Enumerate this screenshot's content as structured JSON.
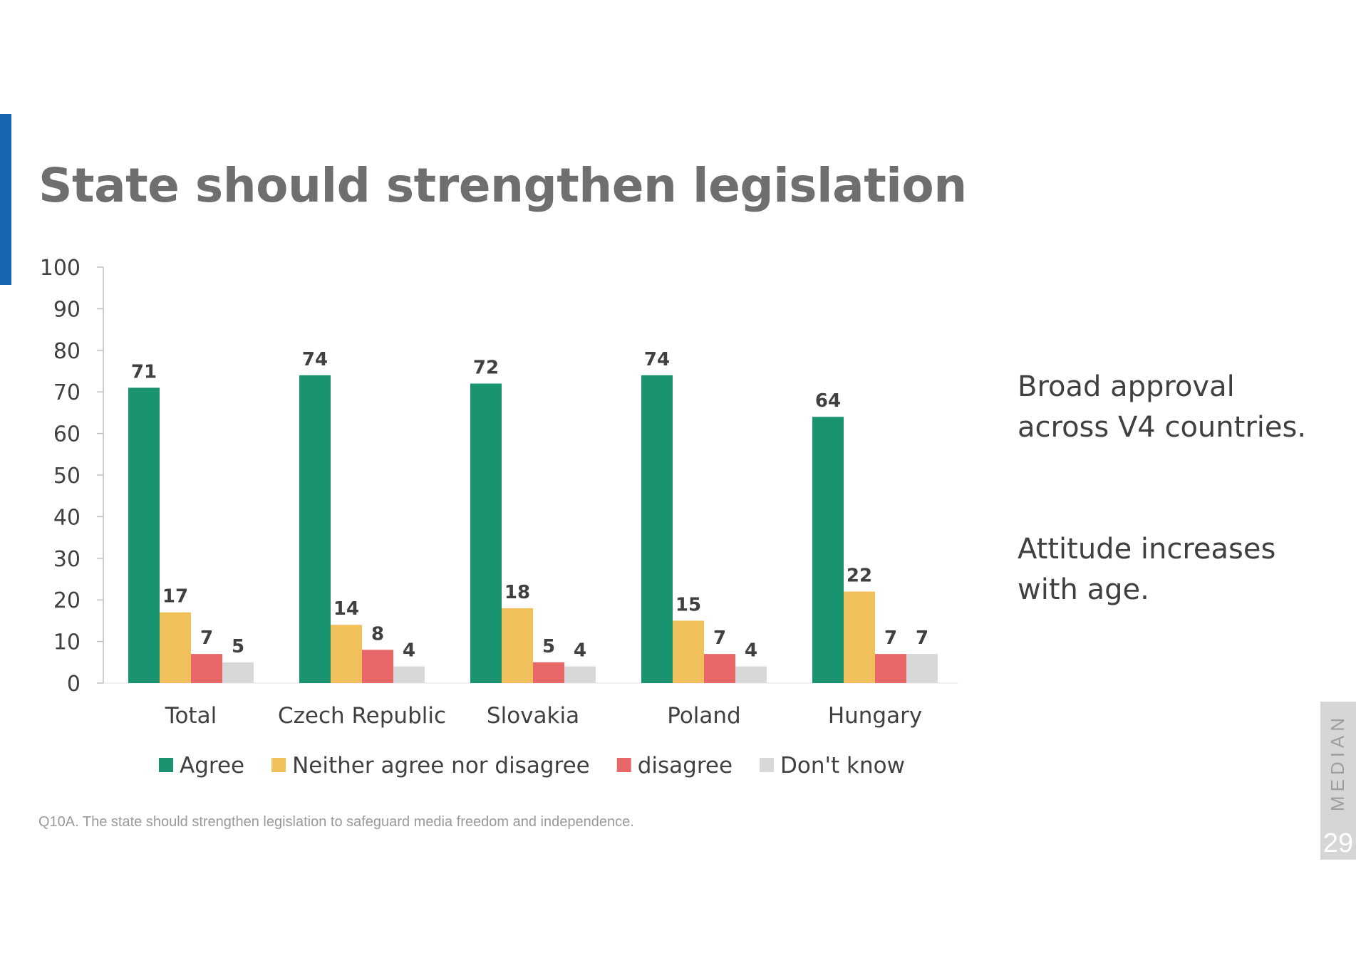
{
  "slide": {
    "title": "State should strengthen legislation",
    "side_text_1": "Broad approval across V4 countries.",
    "side_text_2": "Attitude increases with age.",
    "footnote": "Q10A. The state should strengthen legislation to safeguard media freedom and independence.",
    "brand": "MEDIAN",
    "page_number": "29",
    "accent_color": "#1565b3"
  },
  "chart_data": {
    "type": "bar",
    "title": "State should strengthen legislation",
    "xlabel": "",
    "ylabel": "",
    "ylim": [
      0,
      100
    ],
    "yticks": [
      0,
      10,
      20,
      30,
      40,
      50,
      60,
      70,
      80,
      90,
      100
    ],
    "grid": false,
    "legend_position": "bottom",
    "categories": [
      "Total",
      "Czech Republic",
      "Slovakia",
      "Poland",
      "Hungary"
    ],
    "series": [
      {
        "name": "Agree",
        "color": "#1a9370",
        "values": [
          71,
          74,
          72,
          74,
          64
        ]
      },
      {
        "name": "Neither agree nor disagree",
        "color": "#f0c05a",
        "values": [
          17,
          14,
          18,
          15,
          22
        ]
      },
      {
        "name": "disagree",
        "color": "#e8686a",
        "values": [
          7,
          8,
          5,
          7,
          7
        ]
      },
      {
        "name": "Don't know",
        "color": "#d8d8d8",
        "values": [
          5,
          4,
          4,
          4,
          7
        ]
      }
    ]
  }
}
